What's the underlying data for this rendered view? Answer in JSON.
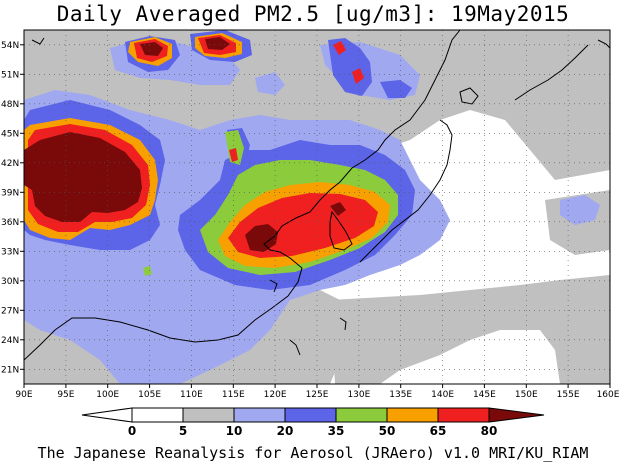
{
  "title": "Daily Averaged PM2.5 [ug/m3]: 19May2015",
  "footer": "The Japanese Reanalysis for Aerosol (JRAero) v1.0 MRI/KU_RIAM",
  "map": {
    "lon_range": [
      90,
      160
    ],
    "lat_range": [
      19.5,
      55.5
    ],
    "lon_labels": [
      "90E",
      "95E",
      "100E",
      "105E",
      "110E",
      "115E",
      "120E",
      "125E",
      "130E",
      "135E",
      "140E",
      "145E",
      "150E",
      "155E",
      "160E"
    ],
    "lat_labels": [
      "21N",
      "24N",
      "27N",
      "30N",
      "33N",
      "36N",
      "39N",
      "42N",
      "45N",
      "48N",
      "51N",
      "54N"
    ],
    "gridline_style": "dotted"
  },
  "colorbar": {
    "ticks": [
      "0",
      "5",
      "10",
      "20",
      "35",
      "50",
      "65",
      "80"
    ],
    "colors": [
      "#ffffff",
      "#c0c0c0",
      "#a0a8f0",
      "#5c64e8",
      "#8ccc3c",
      "#f8a000",
      "#f02020",
      "#7a0a0a"
    ]
  }
}
